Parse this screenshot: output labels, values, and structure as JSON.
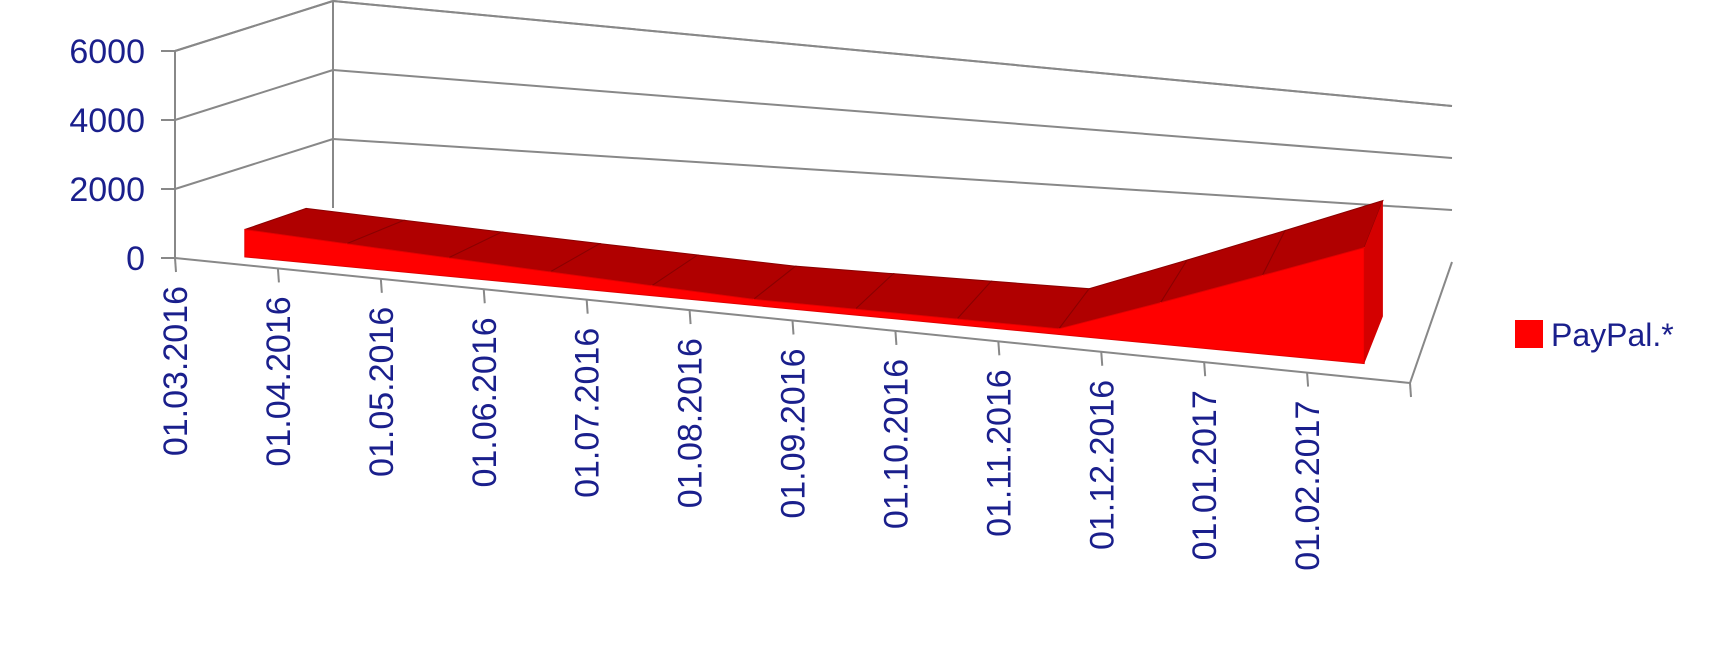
{
  "chart_data": {
    "type": "area",
    "title": "",
    "xlabel": "",
    "ylabel": "",
    "categories": [
      "01.03.2016",
      "01.04.2016",
      "01.05.2016",
      "01.06.2016",
      "01.07.2016",
      "01.08.2016",
      "01.09.2016",
      "01.10.2016",
      "01.11.2016",
      "01.12.2016",
      "01.01.2017",
      "01.02.2017"
    ],
    "y_ticks": [
      "0",
      "2000",
      "4000",
      "6000"
    ],
    "ylim": [
      0,
      6000
    ],
    "grid": true,
    "legend_position": "right",
    "series": [
      {
        "name": "PayPal.*",
        "color": "#ff0000",
        "values": [
          800,
          680,
          560,
          440,
          320,
          200,
          200,
          200,
          200,
          1500,
          2900,
          4400
        ]
      }
    ]
  },
  "colors": {
    "axis_text": "#1a1f8c",
    "grid": "#888888",
    "area_front": "#ff0000",
    "area_top": "#b00000"
  }
}
